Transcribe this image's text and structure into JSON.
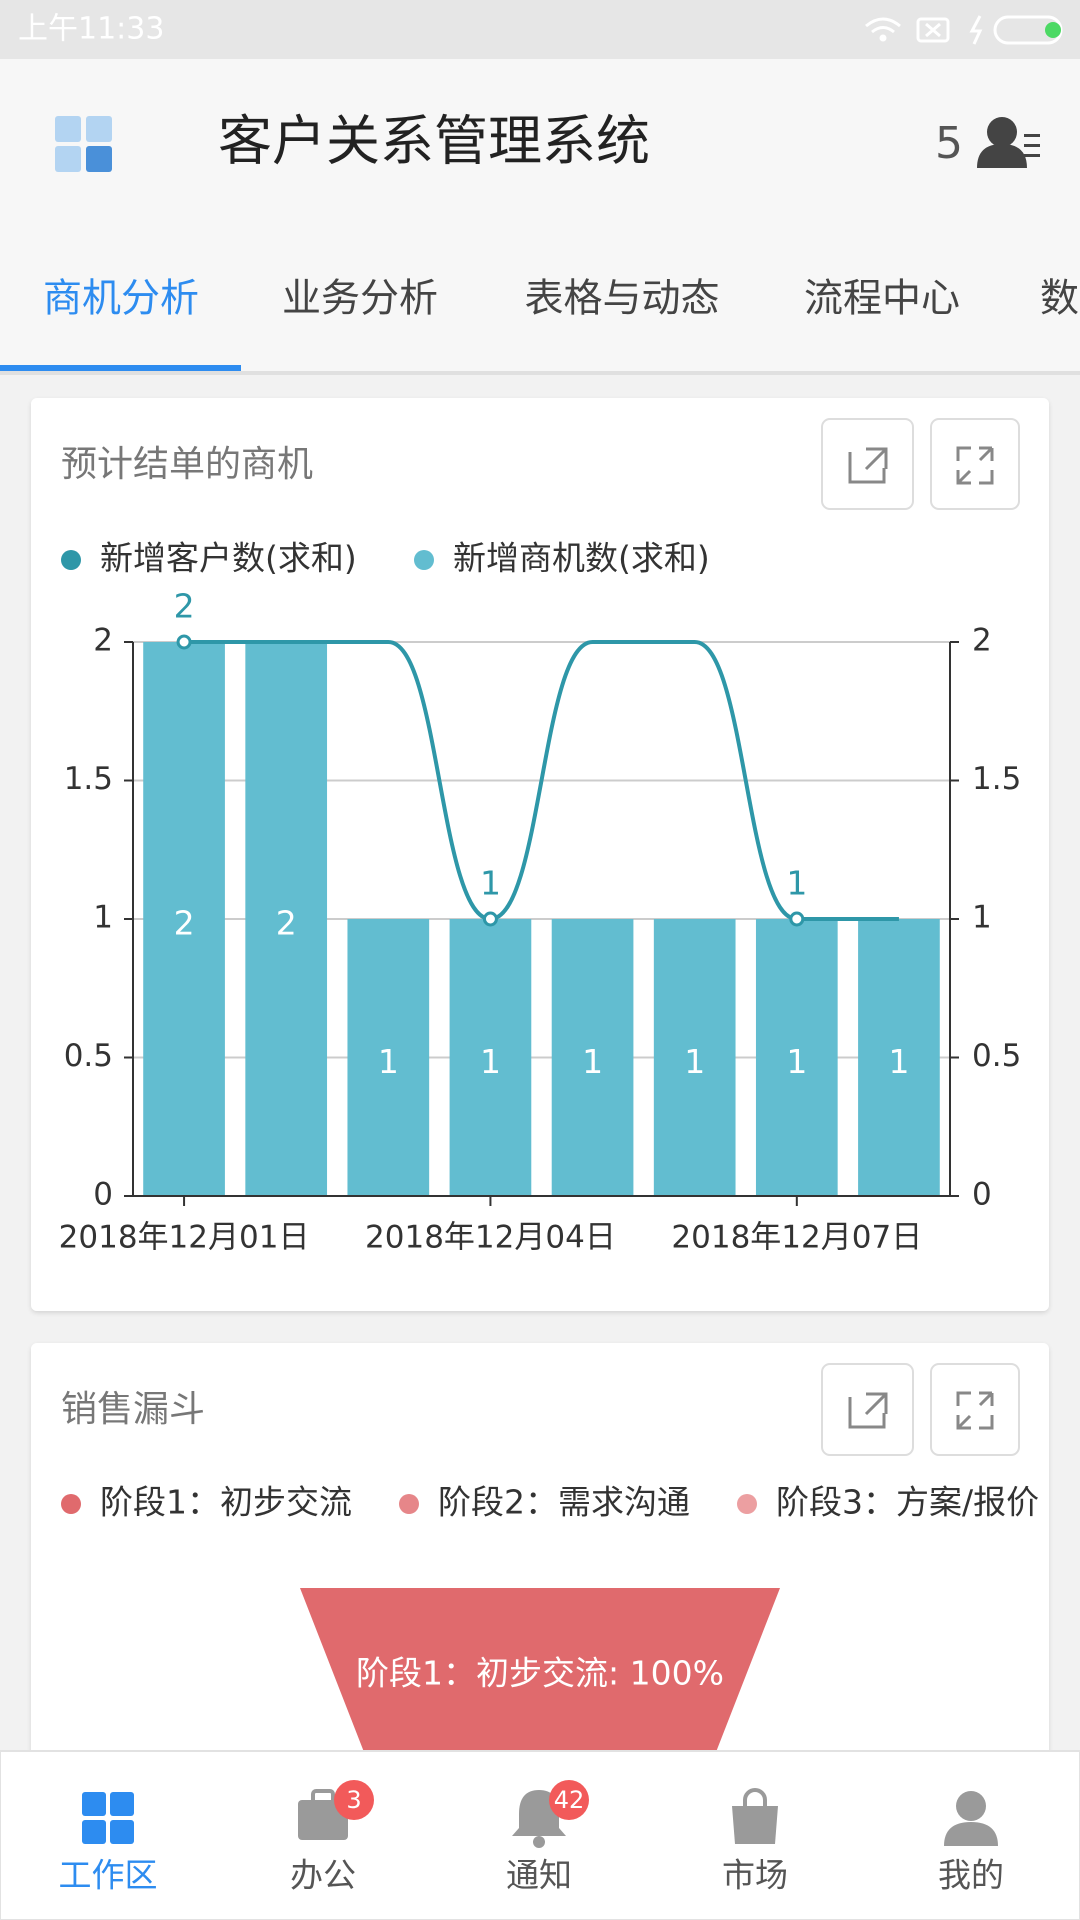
{
  "status_bar": {
    "time": "上午11:33"
  },
  "header": {
    "title": "客户关系管理系统",
    "count": 5
  },
  "tabs": [
    "商机分析",
    "业务分析",
    "表格与动态",
    "流程中心",
    "数"
  ],
  "chart_data": [
    {
      "type": "combo",
      "title": "预计结单的商机",
      "categories": [
        "2018年12月01日",
        null,
        null,
        "2018年12月04日",
        null,
        null,
        "2018年12月07日",
        null
      ],
      "series": [
        {
          "name": "新增客户数(求和)",
          "type": "line",
          "axis": "y2",
          "color": "#2e97a8",
          "values": [
            2,
            2,
            2,
            1,
            2,
            2,
            1,
            1
          ],
          "value_labels": [
            "2",
            null,
            null,
            "1",
            null,
            null,
            "1",
            null
          ]
        },
        {
          "name": "新增商机数(求和)",
          "type": "bar",
          "color": "#62bdd0",
          "values": [
            2,
            2,
            1,
            1,
            1,
            1,
            1,
            1
          ]
        }
      ],
      "ylim": [
        0,
        2
      ],
      "yticks": [
        0,
        0.5,
        1,
        1.5,
        2
      ],
      "y2lim": [
        0,
        2
      ],
      "y2ticks": [
        0,
        0.5,
        1,
        1.5,
        2
      ],
      "grid": true
    },
    {
      "type": "funnel",
      "title": "销售漏斗",
      "categories": [
        "阶段1：初步交流",
        "阶段2：需求沟通",
        "阶段3：方案/报价"
      ],
      "colors": [
        "#e06a6d",
        "#e68689",
        "#ec9fa1"
      ],
      "values": [
        100,
        null,
        null
      ],
      "value_labels": [
        "阶段1：初步交流: 100%",
        null,
        null
      ]
    }
  ],
  "bottom_nav": [
    {
      "label": "工作区"
    },
    {
      "label": "办公",
      "badge": 3
    },
    {
      "label": "通知",
      "badge": 42
    },
    {
      "label": "市场"
    },
    {
      "label": "我的"
    }
  ]
}
